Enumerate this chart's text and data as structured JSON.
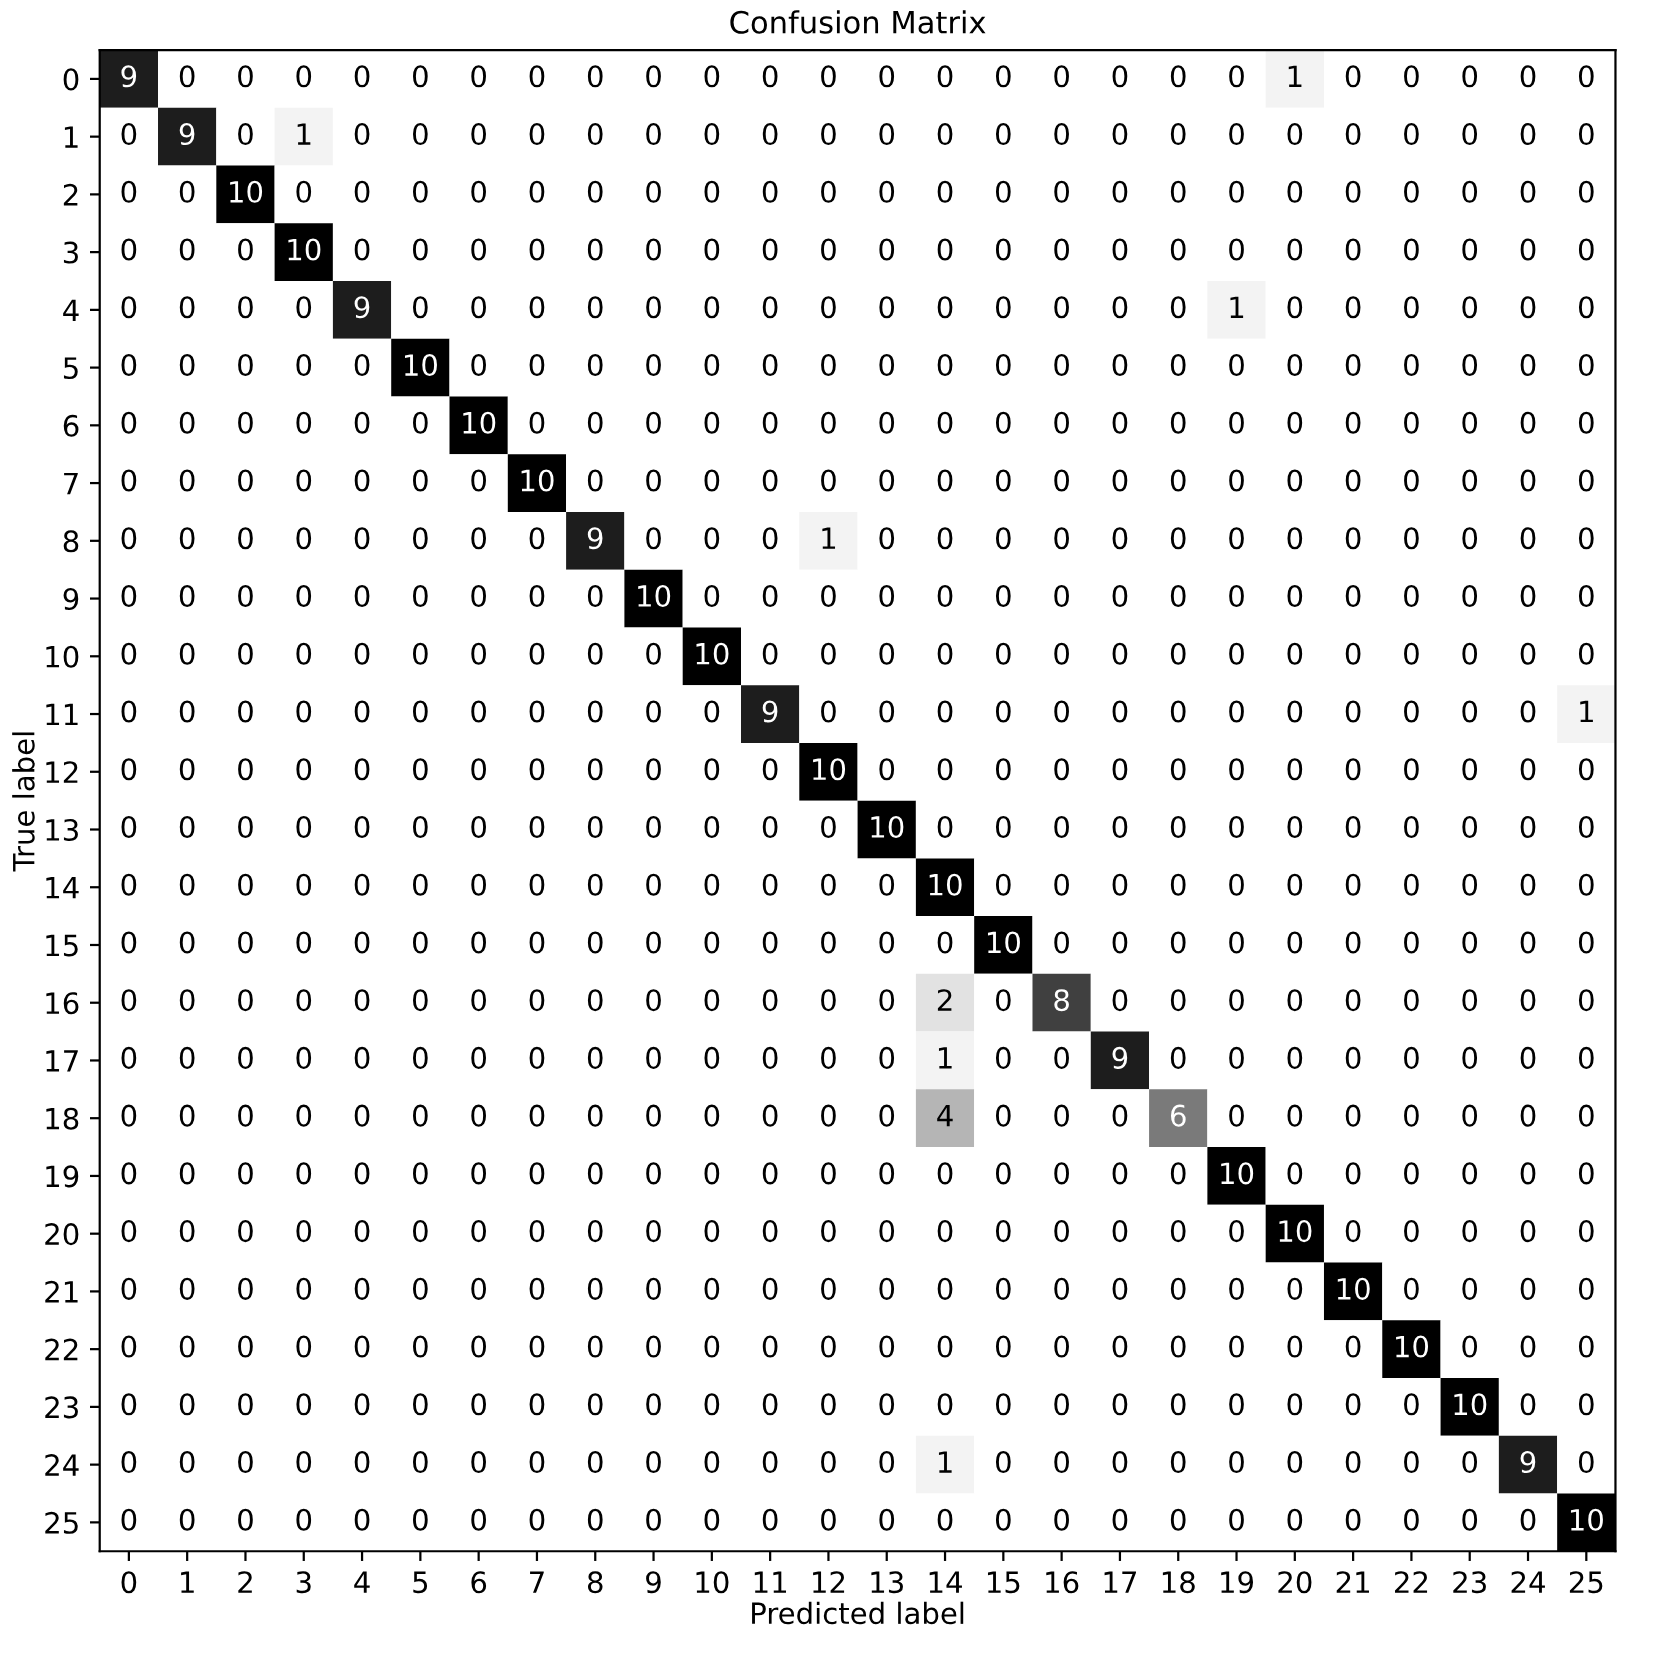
{
  "chart_data": {
    "type": "heatmap",
    "title": "Confusion Matrix",
    "xlabel": "Predicted label",
    "data_labels": true,
    "ylabel": "True label",
    "categories": [
      "0",
      "1",
      "2",
      "3",
      "4",
      "5",
      "6",
      "7",
      "8",
      "9",
      "10",
      "11",
      "12",
      "13",
      "14",
      "15",
      "16",
      "17",
      "18",
      "19",
      "20",
      "21",
      "22",
      "23",
      "24",
      "25"
    ],
    "y_categories": [
      "0",
      "1",
      "2",
      "3",
      "4",
      "5",
      "6",
      "7",
      "8",
      "9",
      "10",
      "11",
      "12",
      "13",
      "14",
      "15",
      "16",
      "17",
      "18",
      "19",
      "20",
      "21",
      "22",
      "23",
      "24",
      "25"
    ],
    "cells": [
      [
        9,
        0,
        0,
        0,
        0,
        0,
        0,
        0,
        0,
        0,
        0,
        0,
        0,
        0,
        0,
        0,
        0,
        0,
        0,
        0,
        1,
        0,
        0,
        0,
        0,
        0
      ],
      [
        0,
        9,
        0,
        1,
        0,
        0,
        0,
        0,
        0,
        0,
        0,
        0,
        0,
        0,
        0,
        0,
        0,
        0,
        0,
        0,
        0,
        0,
        0,
        0,
        0,
        0
      ],
      [
        0,
        0,
        10,
        0,
        0,
        0,
        0,
        0,
        0,
        0,
        0,
        0,
        0,
        0,
        0,
        0,
        0,
        0,
        0,
        0,
        0,
        0,
        0,
        0,
        0,
        0
      ],
      [
        0,
        0,
        0,
        10,
        0,
        0,
        0,
        0,
        0,
        0,
        0,
        0,
        0,
        0,
        0,
        0,
        0,
        0,
        0,
        0,
        0,
        0,
        0,
        0,
        0,
        0
      ],
      [
        0,
        0,
        0,
        0,
        9,
        0,
        0,
        0,
        0,
        0,
        0,
        0,
        0,
        0,
        0,
        0,
        0,
        0,
        0,
        1,
        0,
        0,
        0,
        0,
        0,
        0
      ],
      [
        0,
        0,
        0,
        0,
        0,
        10,
        0,
        0,
        0,
        0,
        0,
        0,
        0,
        0,
        0,
        0,
        0,
        0,
        0,
        0,
        0,
        0,
        0,
        0,
        0,
        0
      ],
      [
        0,
        0,
        0,
        0,
        0,
        0,
        10,
        0,
        0,
        0,
        0,
        0,
        0,
        0,
        0,
        0,
        0,
        0,
        0,
        0,
        0,
        0,
        0,
        0,
        0,
        0
      ],
      [
        0,
        0,
        0,
        0,
        0,
        0,
        0,
        10,
        0,
        0,
        0,
        0,
        0,
        0,
        0,
        0,
        0,
        0,
        0,
        0,
        0,
        0,
        0,
        0,
        0,
        0
      ],
      [
        0,
        0,
        0,
        0,
        0,
        0,
        0,
        0,
        9,
        0,
        0,
        0,
        1,
        0,
        0,
        0,
        0,
        0,
        0,
        0,
        0,
        0,
        0,
        0,
        0,
        0
      ],
      [
        0,
        0,
        0,
        0,
        0,
        0,
        0,
        0,
        0,
        10,
        0,
        0,
        0,
        0,
        0,
        0,
        0,
        0,
        0,
        0,
        0,
        0,
        0,
        0,
        0,
        0
      ],
      [
        0,
        0,
        0,
        0,
        0,
        0,
        0,
        0,
        0,
        0,
        10,
        0,
        0,
        0,
        0,
        0,
        0,
        0,
        0,
        0,
        0,
        0,
        0,
        0,
        0,
        0
      ],
      [
        0,
        0,
        0,
        0,
        0,
        0,
        0,
        0,
        0,
        0,
        0,
        9,
        0,
        0,
        0,
        0,
        0,
        0,
        0,
        0,
        0,
        0,
        0,
        0,
        0,
        1
      ],
      [
        0,
        0,
        0,
        0,
        0,
        0,
        0,
        0,
        0,
        0,
        0,
        0,
        10,
        0,
        0,
        0,
        0,
        0,
        0,
        0,
        0,
        0,
        0,
        0,
        0,
        0
      ],
      [
        0,
        0,
        0,
        0,
        0,
        0,
        0,
        0,
        0,
        0,
        0,
        0,
        0,
        10,
        0,
        0,
        0,
        0,
        0,
        0,
        0,
        0,
        0,
        0,
        0,
        0
      ],
      [
        0,
        0,
        0,
        0,
        0,
        0,
        0,
        0,
        0,
        0,
        0,
        0,
        0,
        0,
        10,
        0,
        0,
        0,
        0,
        0,
        0,
        0,
        0,
        0,
        0,
        0
      ],
      [
        0,
        0,
        0,
        0,
        0,
        0,
        0,
        0,
        0,
        0,
        0,
        0,
        0,
        0,
        0,
        10,
        0,
        0,
        0,
        0,
        0,
        0,
        0,
        0,
        0,
        0
      ],
      [
        0,
        0,
        0,
        0,
        0,
        0,
        0,
        0,
        0,
        0,
        0,
        0,
        0,
        0,
        2,
        0,
        8,
        0,
        0,
        0,
        0,
        0,
        0,
        0,
        0,
        0
      ],
      [
        0,
        0,
        0,
        0,
        0,
        0,
        0,
        0,
        0,
        0,
        0,
        0,
        0,
        0,
        1,
        0,
        0,
        9,
        0,
        0,
        0,
        0,
        0,
        0,
        0,
        0
      ],
      [
        0,
        0,
        0,
        0,
        0,
        0,
        0,
        0,
        0,
        0,
        0,
        0,
        0,
        0,
        4,
        0,
        0,
        0,
        6,
        0,
        0,
        0,
        0,
        0,
        0,
        0
      ],
      [
        0,
        0,
        0,
        0,
        0,
        0,
        0,
        0,
        0,
        0,
        0,
        0,
        0,
        0,
        0,
        0,
        0,
        0,
        0,
        10,
        0,
        0,
        0,
        0,
        0,
        0
      ],
      [
        0,
        0,
        0,
        0,
        0,
        0,
        0,
        0,
        0,
        0,
        0,
        0,
        0,
        0,
        0,
        0,
        0,
        0,
        0,
        0,
        10,
        0,
        0,
        0,
        0,
        0
      ],
      [
        0,
        0,
        0,
        0,
        0,
        0,
        0,
        0,
        0,
        0,
        0,
        0,
        0,
        0,
        0,
        0,
        0,
        0,
        0,
        0,
        0,
        10,
        0,
        0,
        0,
        0
      ],
      [
        0,
        0,
        0,
        0,
        0,
        0,
        0,
        0,
        0,
        0,
        0,
        0,
        0,
        0,
        0,
        0,
        0,
        0,
        0,
        0,
        0,
        0,
        10,
        0,
        0,
        0
      ],
      [
        0,
        0,
        0,
        0,
        0,
        0,
        0,
        0,
        0,
        0,
        0,
        0,
        0,
        0,
        0,
        0,
        0,
        0,
        0,
        0,
        0,
        0,
        0,
        10,
        0,
        0
      ],
      [
        0,
        0,
        0,
        0,
        0,
        0,
        0,
        0,
        0,
        0,
        0,
        0,
        0,
        0,
        1,
        0,
        0,
        0,
        0,
        0,
        0,
        0,
        0,
        0,
        9,
        0
      ],
      [
        0,
        0,
        0,
        0,
        0,
        0,
        0,
        0,
        0,
        0,
        0,
        0,
        0,
        0,
        0,
        0,
        0,
        0,
        0,
        0,
        0,
        0,
        0,
        0,
        0,
        10
      ]
    ]
  }
}
